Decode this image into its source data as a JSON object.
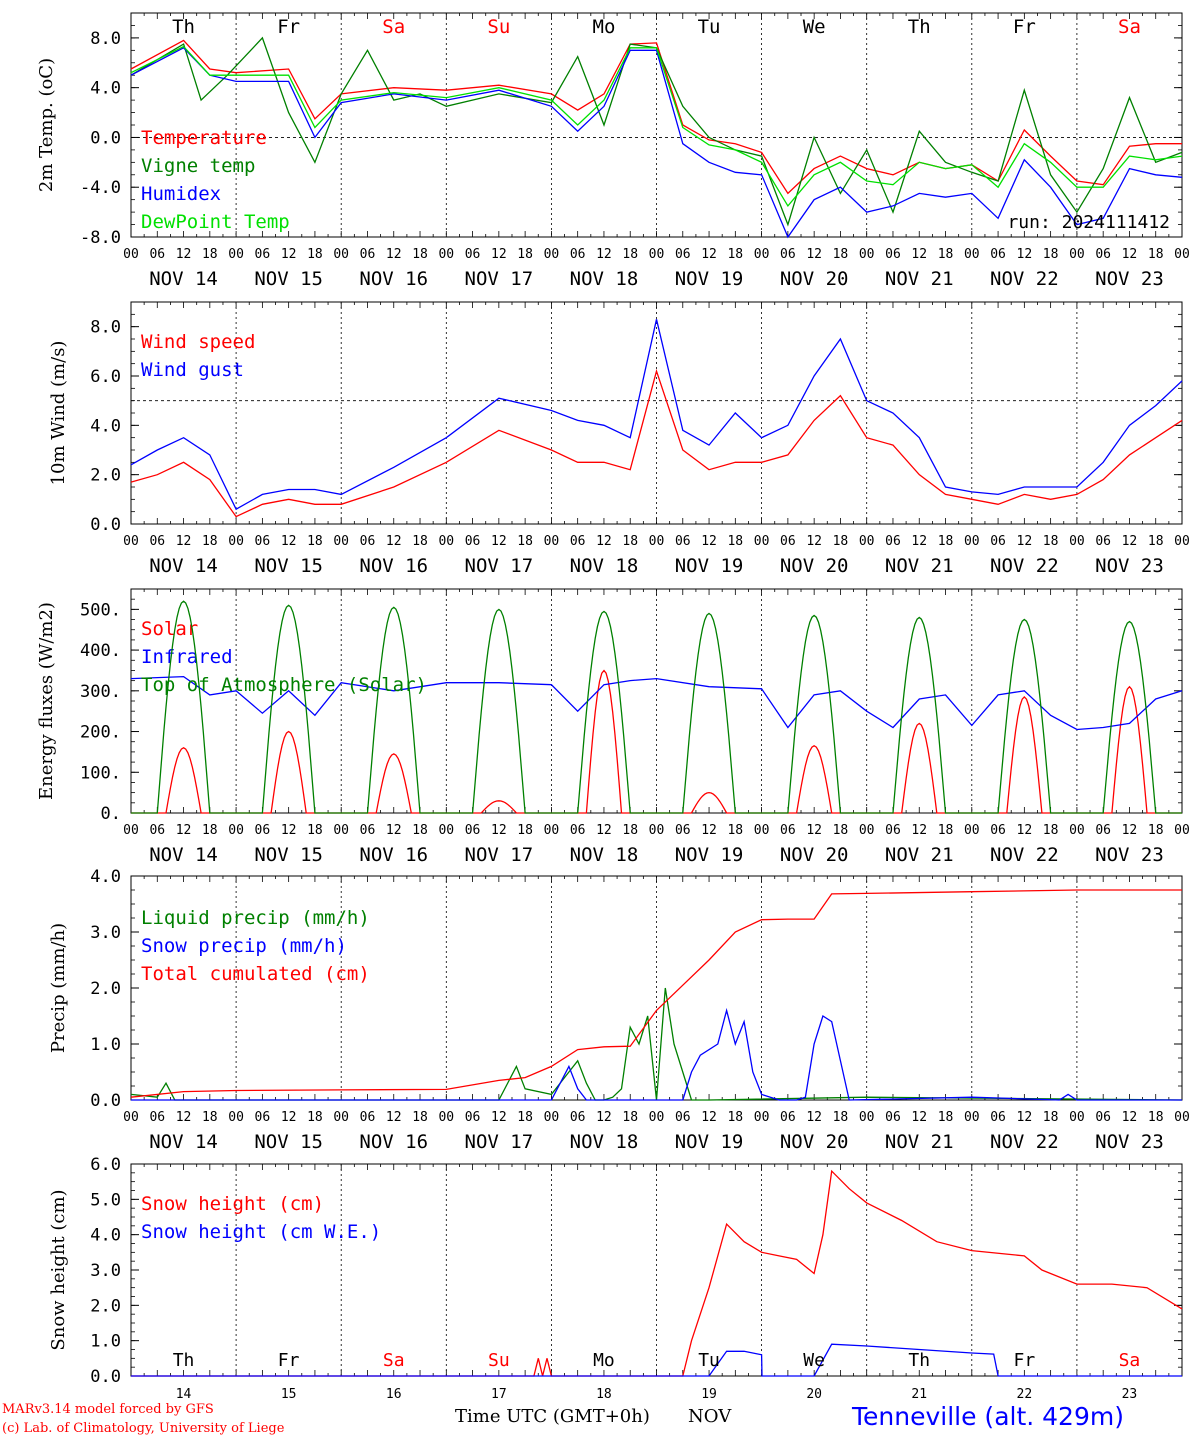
{
  "footer": {
    "model_line": "MARv3.14 model forced by GFS",
    "lab_line": "(c) Lab. of Climatology, University of Liege",
    "x_title": "Time UTC (GMT+0h)",
    "x_title_month": "NOV",
    "station": "Tenneville (alt. 429m)"
  },
  "colors": {
    "red": "#ff0000",
    "green": "#008000",
    "blue": "#0000ff",
    "light_green": "#00e000",
    "weekend_red": "#ff0000",
    "ink": "#000000"
  },
  "chart_data": [
    {
      "type": "line",
      "ylabel": "2m Temp. (oC)",
      "ylim": [
        -8,
        10
      ],
      "yticks": [
        "-8.0",
        "-4.0",
        "0.0",
        "4.0",
        "8.0"
      ],
      "ref_line": 0,
      "run_label": "run: 2024111412",
      "day_names": [
        "Th",
        "Fr",
        "Sa",
        "Su",
        "Mo",
        "Tu",
        "We",
        "Th",
        "Fr",
        "Sa"
      ],
      "date_labels": [
        "NOV 14",
        "NOV 15",
        "NOV 16",
        "NOV 17",
        "NOV 18",
        "NOV 19",
        "NOV 20",
        "NOV 21",
        "NOV 22",
        "NOV 23"
      ],
      "hour_labels": [
        "00",
        "06",
        "12",
        "18"
      ],
      "x_unit": "hours since NOV 14 00 UTC",
      "series": [
        {
          "name": "Temperature",
          "color": "red",
          "x": [
            0,
            12,
            18,
            24,
            36,
            42,
            48,
            60,
            72,
            84,
            96,
            102,
            108,
            114,
            120,
            126,
            132,
            138,
            144,
            150,
            156,
            162,
            168,
            174,
            180,
            186,
            192,
            198,
            204,
            210,
            216,
            222,
            228,
            234,
            240
          ],
          "values": [
            5.5,
            7.8,
            5.5,
            5.2,
            5.5,
            1.5,
            3.5,
            4.0,
            3.8,
            4.2,
            3.5,
            2.2,
            3.5,
            7.5,
            7.6,
            1.0,
            -0.2,
            -0.5,
            -1.2,
            -4.5,
            -2.5,
            -1.5,
            -2.5,
            -3.0,
            -2.0,
            -2.5,
            -2.2,
            -3.5,
            0.6,
            -1.5,
            -3.5,
            -3.8,
            -0.7,
            -0.5,
            -0.5
          ]
        },
        {
          "name": "Vigne temp",
          "color": "green",
          "x": [
            0,
            12,
            16,
            22,
            30,
            36,
            42,
            48,
            54,
            60,
            66,
            72,
            84,
            96,
            102,
            108,
            114,
            120,
            126,
            132,
            138,
            144,
            150,
            156,
            162,
            168,
            174,
            180,
            186,
            192,
            198,
            204,
            210,
            216,
            222,
            228,
            234,
            240
          ],
          "values": [
            5.0,
            7.5,
            3.0,
            5.0,
            8.0,
            2.0,
            -2.0,
            3.5,
            7.0,
            3.0,
            3.5,
            2.5,
            3.5,
            2.8,
            6.5,
            1.0,
            7.5,
            7.2,
            2.5,
            0.0,
            -1.0,
            -1.5,
            -7.0,
            0.0,
            -4.5,
            -1.0,
            -6.0,
            0.5,
            -2.0,
            -2.8,
            -3.5,
            3.8,
            -3.0,
            -6.0,
            -2.5,
            3.2,
            -2.0,
            -1.2
          ]
        },
        {
          "name": "Humidex",
          "color": "blue",
          "x": [
            0,
            12,
            18,
            24,
            36,
            42,
            48,
            60,
            72,
            84,
            96,
            102,
            108,
            114,
            120,
            126,
            132,
            138,
            144,
            150,
            156,
            162,
            168,
            174,
            180,
            186,
            192,
            198,
            204,
            210,
            216,
            222,
            228,
            234,
            240
          ],
          "values": [
            5.0,
            7.2,
            5.0,
            4.5,
            4.5,
            0.0,
            2.8,
            3.5,
            3.0,
            3.8,
            2.5,
            0.5,
            2.5,
            7.0,
            7.0,
            -0.5,
            -2.0,
            -2.8,
            -3.0,
            -8.0,
            -5.0,
            -4.0,
            -6.0,
            -5.5,
            -4.5,
            -4.8,
            -4.5,
            -6.5,
            -1.8,
            -4.0,
            -7.0,
            -6.5,
            -2.5,
            -3.0,
            -3.2
          ]
        },
        {
          "name": "DewPoint Temp",
          "color": "light_green",
          "x": [
            0,
            12,
            18,
            24,
            36,
            42,
            48,
            60,
            72,
            84,
            96,
            102,
            108,
            114,
            120,
            126,
            132,
            138,
            144,
            150,
            156,
            162,
            168,
            174,
            180,
            186,
            192,
            198,
            204,
            210,
            216,
            222,
            228,
            234,
            240
          ],
          "values": [
            5.2,
            7.3,
            5.0,
            5.0,
            5.0,
            0.8,
            3.0,
            3.6,
            3.2,
            4.0,
            3.0,
            1.0,
            3.0,
            7.2,
            7.2,
            0.8,
            -0.6,
            -1.0,
            -2.0,
            -5.5,
            -3.0,
            -2.0,
            -3.5,
            -3.8,
            -2.0,
            -2.5,
            -2.2,
            -4.0,
            -0.5,
            -2.0,
            -4.0,
            -4.0,
            -1.5,
            -1.8,
            -1.5
          ]
        }
      ]
    },
    {
      "type": "line",
      "ylabel": "10m Wind (m/s)",
      "ylim": [
        0,
        9
      ],
      "yticks": [
        "0.0",
        "2.0",
        "4.0",
        "6.0",
        "8.0"
      ],
      "ref_line": 5,
      "date_labels": [
        "NOV 14",
        "NOV 15",
        "NOV 16",
        "NOV 17",
        "NOV 18",
        "NOV 19",
        "NOV 20",
        "NOV 21",
        "NOV 22",
        "NOV 23"
      ],
      "hour_labels": [
        "00",
        "06",
        "12",
        "18"
      ],
      "series": [
        {
          "name": "Wind speed",
          "color": "red",
          "x": [
            0,
            6,
            12,
            18,
            24,
            30,
            36,
            42,
            48,
            60,
            72,
            84,
            96,
            102,
            108,
            114,
            120,
            126,
            132,
            138,
            144,
            150,
            156,
            162,
            168,
            174,
            180,
            186,
            192,
            198,
            204,
            210,
            216,
            222,
            228,
            234,
            240
          ],
          "values": [
            1.7,
            2.0,
            2.5,
            1.8,
            0.3,
            0.8,
            1.0,
            0.8,
            0.8,
            1.5,
            2.5,
            3.8,
            3.0,
            2.5,
            2.5,
            2.2,
            6.2,
            3.0,
            2.2,
            2.5,
            2.5,
            2.8,
            4.2,
            5.2,
            3.5,
            3.2,
            2.0,
            1.2,
            1.0,
            0.8,
            1.2,
            1.0,
            1.2,
            1.8,
            2.8,
            3.5,
            4.2
          ]
        },
        {
          "name": "Wind gust",
          "color": "blue",
          "x": [
            0,
            6,
            12,
            18,
            24,
            30,
            36,
            42,
            48,
            60,
            72,
            84,
            96,
            102,
            108,
            114,
            120,
            126,
            132,
            138,
            144,
            150,
            156,
            162,
            168,
            174,
            180,
            186,
            192,
            198,
            204,
            210,
            216,
            222,
            228,
            234,
            240
          ],
          "values": [
            2.4,
            3.0,
            3.5,
            2.8,
            0.6,
            1.2,
            1.4,
            1.4,
            1.2,
            2.3,
            3.5,
            5.1,
            4.6,
            4.2,
            4.0,
            3.5,
            8.3,
            3.8,
            3.2,
            4.5,
            3.5,
            4.0,
            6.0,
            7.5,
            5.0,
            4.5,
            3.5,
            1.5,
            1.3,
            1.2,
            1.5,
            1.5,
            1.5,
            2.5,
            4.0,
            4.8,
            5.8
          ]
        }
      ]
    },
    {
      "type": "line",
      "ylabel": "Energy fluxes (W/m2)",
      "ylim": [
        0,
        550
      ],
      "yticks": [
        "0.",
        "100.",
        "200.",
        "300.",
        "400.",
        "500."
      ],
      "date_labels": [
        "NOV 14",
        "NOV 15",
        "NOV 16",
        "NOV 17",
        "NOV 18",
        "NOV 19",
        "NOV 20",
        "NOV 21",
        "NOV 22",
        "NOV 23"
      ],
      "hour_labels": [
        "00",
        "06",
        "12",
        "18"
      ],
      "series": [
        {
          "name": "Solar",
          "color": "red",
          "peaks": [
            160,
            200,
            145,
            30,
            350,
            50,
            165,
            220,
            285,
            310
          ]
        },
        {
          "name": "Infrared",
          "color": "blue",
          "x": [
            0,
            12,
            18,
            24,
            30,
            36,
            42,
            48,
            60,
            72,
            84,
            96,
            102,
            108,
            114,
            120,
            132,
            144,
            150,
            156,
            162,
            168,
            174,
            180,
            186,
            192,
            198,
            204,
            210,
            216,
            222,
            228,
            234,
            240
          ],
          "values": [
            330,
            335,
            290,
            300,
            245,
            300,
            240,
            320,
            300,
            320,
            320,
            315,
            250,
            315,
            325,
            330,
            310,
            305,
            210,
            290,
            300,
            250,
            210,
            280,
            290,
            215,
            290,
            300,
            240,
            205,
            210,
            220,
            280,
            300
          ]
        },
        {
          "name": "Top of Atmosphere (Solar)",
          "color": "green",
          "peaks": [
            520,
            510,
            505,
            500,
            495,
            490,
            485,
            480,
            475,
            470
          ]
        }
      ]
    },
    {
      "type": "line",
      "ylabel": "Precip (mm/h)",
      "ylim": [
        0,
        4
      ],
      "yticks": [
        "0.0",
        "1.0",
        "2.0",
        "3.0",
        "4.0"
      ],
      "date_labels": [
        "NOV 14",
        "NOV 15",
        "NOV 16",
        "NOV 17",
        "NOV 18",
        "NOV 19",
        "NOV 20",
        "NOV 21",
        "NOV 22",
        "NOV 23"
      ],
      "hour_labels": [
        "00",
        "06",
        "12",
        "18"
      ],
      "series": [
        {
          "name": "Liquid precip (mm/h)",
          "color": "green",
          "x": [
            0,
            6,
            8,
            10,
            24,
            72,
            84,
            88,
            90,
            96,
            100,
            102,
            104,
            106,
            108,
            110,
            112,
            114,
            116,
            118,
            120,
            122,
            124,
            128,
            132,
            168,
            240
          ],
          "values": [
            0.1,
            0.05,
            0.3,
            0.0,
            0.0,
            0.0,
            0.0,
            0.6,
            0.2,
            0.1,
            0.5,
            0.7,
            0.3,
            0.0,
            0.0,
            0.05,
            0.2,
            1.3,
            1.0,
            1.5,
            0.0,
            2.0,
            1.0,
            0.0,
            0.0,
            0.05,
            0.0
          ]
        },
        {
          "name": "Snow precip (mm/h)",
          "color": "blue",
          "x": [
            0,
            96,
            98,
            100,
            102,
            104,
            108,
            120,
            126,
            128,
            130,
            134,
            136,
            138,
            140,
            142,
            144,
            146,
            148,
            150,
            152,
            154,
            156,
            158,
            160,
            164,
            192,
            212,
            214,
            216,
            240
          ],
          "values": [
            0.0,
            0.0,
            0.3,
            0.6,
            0.2,
            0.0,
            0.0,
            0.0,
            0.0,
            0.5,
            0.8,
            1.0,
            1.6,
            1.0,
            1.4,
            0.5,
            0.1,
            0.05,
            0.0,
            0.0,
            0.0,
            0.05,
            1.0,
            1.5,
            1.4,
            0.0,
            0.05,
            0.0,
            0.1,
            0.0,
            0.0
          ]
        },
        {
          "name": "Total cumulated (cm)",
          "color": "red",
          "x": [
            0,
            12,
            24,
            48,
            72,
            84,
            90,
            96,
            102,
            108,
            114,
            120,
            126,
            132,
            138,
            144,
            150,
            156,
            160,
            168,
            192,
            216,
            240
          ],
          "values": [
            0.05,
            0.15,
            0.17,
            0.18,
            0.19,
            0.35,
            0.4,
            0.6,
            0.9,
            0.95,
            0.96,
            1.6,
            2.05,
            2.5,
            3.0,
            3.22,
            3.23,
            3.23,
            3.68,
            3.69,
            3.72,
            3.75,
            3.75
          ]
        }
      ]
    },
    {
      "type": "line",
      "ylabel": "Snow height (cm)",
      "ylim": [
        0,
        6
      ],
      "yticks": [
        "0.0",
        "1.0",
        "2.0",
        "3.0",
        "4.0",
        "5.0",
        "6.0"
      ],
      "day_names": [
        "Th",
        "Fr",
        "Sa",
        "Su",
        "Mo",
        "Tu",
        "We",
        "Th",
        "Fr",
        "Sa"
      ],
      "day_numbers": [
        "14",
        "15",
        "16",
        "17",
        "18",
        "19",
        "20",
        "21",
        "22",
        "23"
      ],
      "series": [
        {
          "name": "Snow height (cm)",
          "color": "red",
          "x": [
            0,
            92,
            93,
            94,
            95,
            96,
            126,
            128,
            132,
            136,
            140,
            144,
            148,
            152,
            156,
            158,
            160,
            164,
            168,
            176,
            184,
            192,
            200,
            204,
            208,
            216,
            224,
            232,
            240
          ],
          "values": [
            0,
            0,
            0.5,
            0,
            0.5,
            0,
            0,
            1.0,
            2.5,
            4.3,
            3.8,
            3.5,
            3.4,
            3.3,
            2.9,
            4.0,
            5.8,
            5.3,
            4.9,
            4.4,
            3.8,
            3.55,
            3.45,
            3.4,
            3.0,
            2.6,
            2.6,
            2.5,
            1.9
          ]
        },
        {
          "name": "Snow height (cm W.E.)",
          "color": "blue",
          "x": [
            0,
            132,
            136,
            140,
            144,
            144.1,
            156,
            160,
            168,
            192,
            197,
            198,
            240
          ],
          "values": [
            0,
            0,
            0.7,
            0.7,
            0.6,
            0,
            0,
            0.9,
            0.85,
            0.65,
            0.62,
            0,
            0
          ]
        }
      ]
    }
  ]
}
